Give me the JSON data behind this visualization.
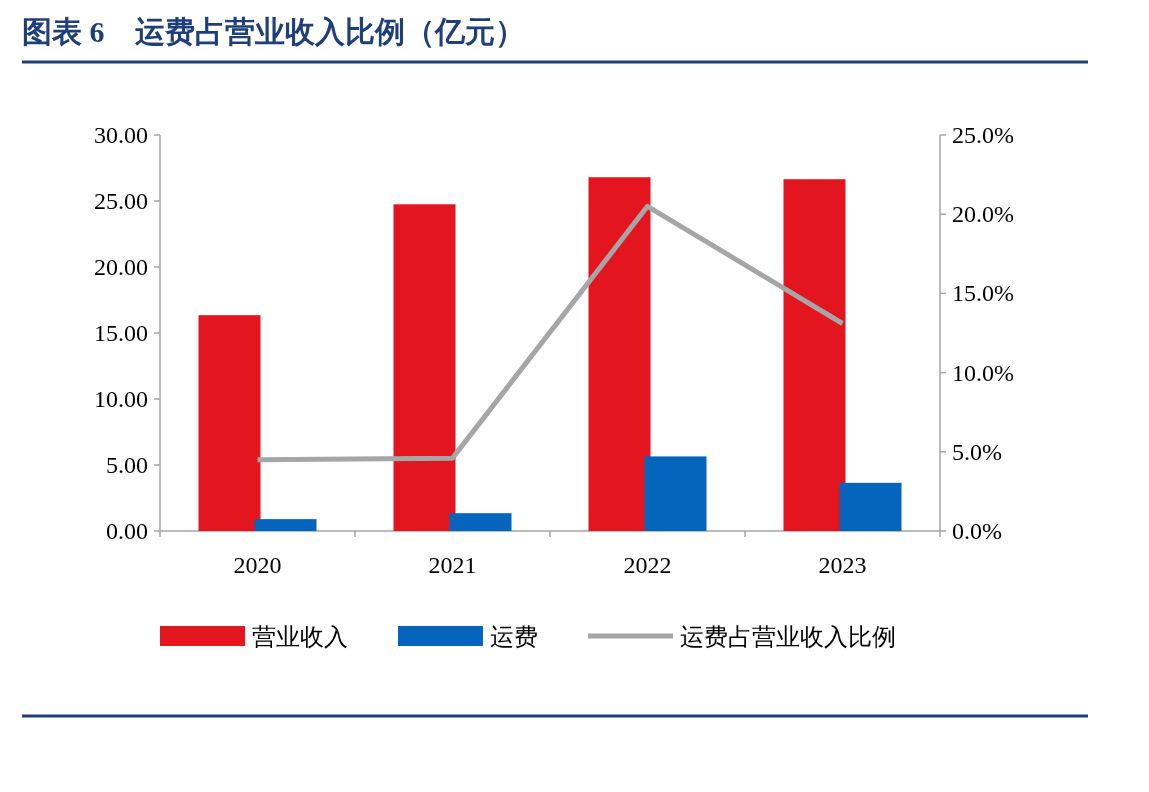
{
  "chart_data": {
    "type": "bar",
    "title": "图表 6　运费占营业收入比例（亿元）",
    "categories": [
      "2020",
      "2021",
      "2022",
      "2023"
    ],
    "series": [
      {
        "name": "营业收入",
        "color": "#e3151e",
        "values": [
          16.35,
          24.75,
          26.8,
          26.65
        ]
      },
      {
        "name": "运费",
        "color": "#0565bd",
        "values": [
          0.9,
          1.35,
          5.65,
          3.65
        ]
      },
      {
        "name": "运费占营业收入比例",
        "type": "line",
        "axis": "y2",
        "color": "#a6a6a6",
        "values": [
          4.5,
          4.6,
          20.5,
          13.1
        ]
      }
    ],
    "ylim": [
      0,
      30
    ],
    "yticks": [
      {
        "value": 0,
        "label": "0.00"
      },
      {
        "value": 5,
        "label": "5.00"
      },
      {
        "value": 10,
        "label": "10.00"
      },
      {
        "value": 15,
        "label": "15.00"
      },
      {
        "value": 20,
        "label": "20.00"
      },
      {
        "value": 25,
        "label": "25.00"
      },
      {
        "value": 30,
        "label": "30.00"
      }
    ],
    "y2lim": [
      0,
      25
    ],
    "y2ticks": [
      {
        "value": 0,
        "label": "0.0%"
      },
      {
        "value": 5,
        "label": "5.0%"
      },
      {
        "value": 10,
        "label": "10.0%"
      },
      {
        "value": 15,
        "label": "15.0%"
      },
      {
        "value": 20,
        "label": "20.0%"
      },
      {
        "value": 25,
        "label": "25.0%"
      }
    ],
    "legend": "bottom",
    "marker": "none"
  }
}
